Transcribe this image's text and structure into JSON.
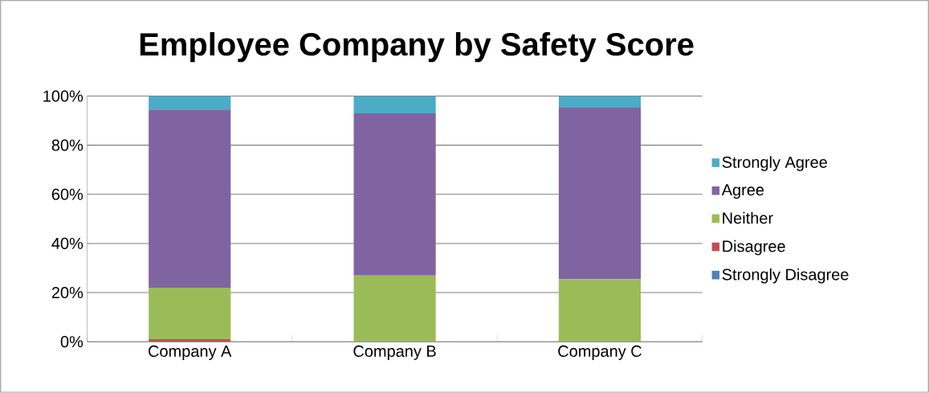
{
  "chart_data": {
    "type": "bar",
    "title": "Employee Company by Safety Score",
    "stacked": true,
    "categories": [
      "Company A",
      "Company B",
      "Company C"
    ],
    "series": [
      {
        "name": "Strongly Disagree",
        "color": "#4f81bd",
        "values": [
          0,
          0,
          0
        ]
      },
      {
        "name": "Disagree",
        "color": "#c0504d",
        "values": [
          1,
          0,
          0
        ]
      },
      {
        "name": "Neither",
        "color": "#9bbb59",
        "values": [
          21,
          27,
          25.5
        ]
      },
      {
        "name": "Agree",
        "color": "#8064a2",
        "values": [
          72.5,
          66,
          70
        ]
      },
      {
        "name": "Strongly Agree",
        "color": "#4bacc6",
        "values": [
          5.5,
          7,
          4.5
        ]
      }
    ],
    "ylim": [
      0,
      100
    ],
    "yticks": [
      {
        "value": 0,
        "label": "0%"
      },
      {
        "value": 20,
        "label": "20%"
      },
      {
        "value": 40,
        "label": "40%"
      },
      {
        "value": 60,
        "label": "60%"
      },
      {
        "value": 80,
        "label": "80%"
      },
      {
        "value": 100,
        "label": "100%"
      }
    ],
    "grid": "y",
    "legend": "right"
  }
}
